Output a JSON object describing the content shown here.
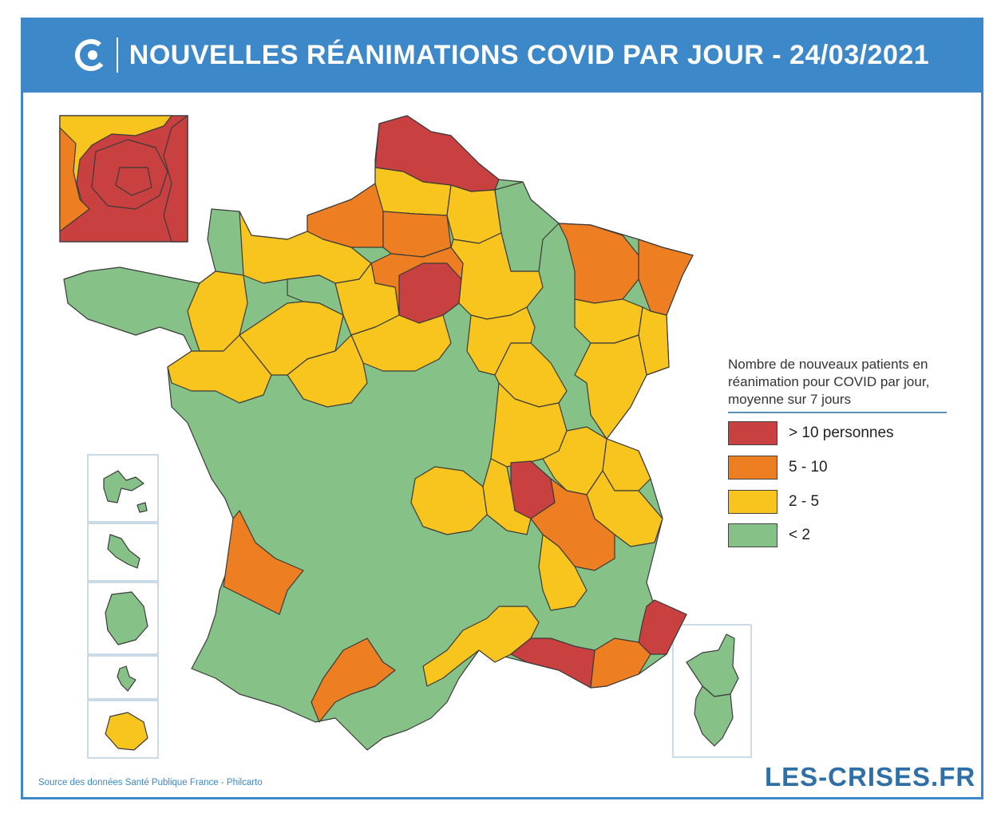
{
  "header": {
    "title": "NOUVELLES RÉANIMATIONS COVID PAR JOUR - 24/03/2021"
  },
  "colors": {
    "red": "#c94040",
    "orange": "#ee7e22",
    "yellow": "#f7c51e",
    "green": "#86c287",
    "accent": "#3d88c8"
  },
  "legend": {
    "title": "Nombre de nouveaux patients en réanimation pour COVID par jour, moyenne sur 7 jours",
    "items": [
      {
        "label": "> 10 personnes",
        "color": "#c94040"
      },
      {
        "label": "5 - 10",
        "color": "#ee7e22"
      },
      {
        "label": "2 - 5",
        "color": "#f7c51e"
      },
      {
        "label": "< 2",
        "color": "#86c287"
      }
    ]
  },
  "footer": {
    "source": "Source des données Santé Publique France - Philcarto",
    "brand": "LES-CRISES.FR"
  }
}
